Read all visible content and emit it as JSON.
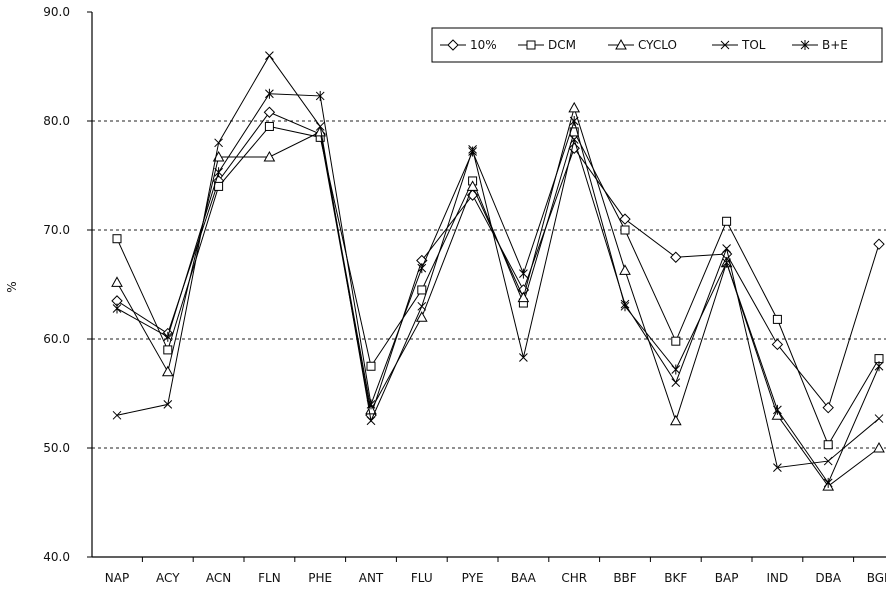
{
  "chart_data": {
    "type": "line",
    "xlabel": "",
    "ylabel": "%",
    "ylim": [
      40,
      90
    ],
    "yticks": [
      "40.0",
      "50.0",
      "60.0",
      "70.0",
      "80.0",
      "90.0"
    ],
    "grid": "horizontal dashed",
    "legend_position": "top-right",
    "categories": [
      "NAP",
      "ACY",
      "ACN",
      "FLN",
      "PHE",
      "ANT",
      "FLU",
      "PYE",
      "BAA",
      "CHR",
      "BBF",
      "BKF",
      "BAP",
      "IND",
      "DBA",
      "BGP"
    ],
    "series": [
      {
        "name": "10%",
        "marker": "diamond",
        "values": [
          63.5,
          60.5,
          74.5,
          80.8,
          78.8,
          53.0,
          67.2,
          73.2,
          64.5,
          77.5,
          71.0,
          67.5,
          67.8,
          59.5,
          53.7,
          68.7
        ]
      },
      {
        "name": "DCM",
        "marker": "square",
        "values": [
          69.2,
          59.0,
          74.0,
          79.5,
          78.5,
          57.5,
          64.5,
          74.5,
          63.3,
          79.0,
          70.0,
          59.8,
          70.8,
          61.8,
          50.3,
          58.2
        ]
      },
      {
        "name": "CYCLO",
        "marker": "triangle",
        "values": [
          65.2,
          57.0,
          76.7,
          76.7,
          79.0,
          53.5,
          62.0,
          74.0,
          63.8,
          81.2,
          66.3,
          52.5,
          67.0,
          53.0,
          46.5,
          50.0
        ]
      },
      {
        "name": "TOL",
        "marker": "x",
        "values": [
          53.0,
          54.0,
          78.0,
          86.0,
          79.5,
          52.5,
          63.0,
          77.4,
          58.3,
          78.3,
          63.2,
          56.0,
          68.3,
          48.2,
          48.8,
          52.7
        ]
      },
      {
        "name": "B+E",
        "marker": "asterisk",
        "values": [
          62.8,
          60.2,
          75.3,
          82.5,
          82.3,
          54.0,
          66.5,
          77.2,
          66.0,
          80.0,
          63.0,
          57.2,
          67.0,
          53.5,
          46.8,
          57.5
        ]
      }
    ]
  }
}
